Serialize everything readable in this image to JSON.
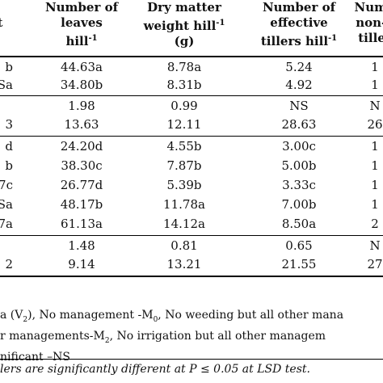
{
  "header": {
    "col0": [
      "t"
    ],
    "col1": [
      "Number of",
      "leaves",
      "hill"
    ],
    "col2": [
      "Dry matter",
      "weight hill",
      "(g)"
    ],
    "col3": [
      "Number of",
      "effective",
      "tillers hill"
    ],
    "col4": [
      "Numb",
      "non-e",
      "tiller"
    ],
    "sup": "-1"
  },
  "rows": [
    {
      "c0": "b",
      "c1": "44.63a",
      "c2": "8.78a",
      "c3": "5.24",
      "c4": "1"
    },
    {
      "c0": "Sa",
      "c1": "34.80b",
      "c2": "8.31b",
      "c3": "4.92",
      "c4": "1"
    },
    {
      "c0": "",
      "c1": "1.98",
      "c2": "0.99",
      "c3": "NS",
      "c4": "N"
    },
    {
      "c0": "3",
      "c1": "13.63",
      "c2": "12.11",
      "c3": "28.63",
      "c4": "26"
    },
    {
      "c0": "d",
      "c1": "24.20d",
      "c2": "4.55b",
      "c3": "3.00c",
      "c4": "1"
    },
    {
      "c0": "b",
      "c1": "38.30c",
      "c2": "7.87b",
      "c3": "5.00b",
      "c4": "1"
    },
    {
      "c0": "7c",
      "c1": "26.77d",
      "c2": "5.39b",
      "c3": "3.33c",
      "c4": "1"
    },
    {
      "c0": "Sa",
      "c1": "48.17b",
      "c2": "11.78a",
      "c3": "7.00b",
      "c4": "1"
    },
    {
      "c0": "7a",
      "c1": "61.13a",
      "c2": "14.12a",
      "c3": "8.50a",
      "c4": "2"
    },
    {
      "c0": "",
      "c1": "1.48",
      "c2": "0.81",
      "c3": "0.65",
      "c4": "N"
    },
    {
      "c0": "2",
      "c1": "9.14",
      "c2": "13.21",
      "c3": "21.55",
      "c4": "27"
    }
  ],
  "notes": [
    "a (V2), No management -M0, No weeding but all other mana",
    "r managements-M2, No irrigation but all other managem",
    "nificant –NS"
  ],
  "footer": "lers are significantly different at P ≤ 0.05 at LSD test."
}
